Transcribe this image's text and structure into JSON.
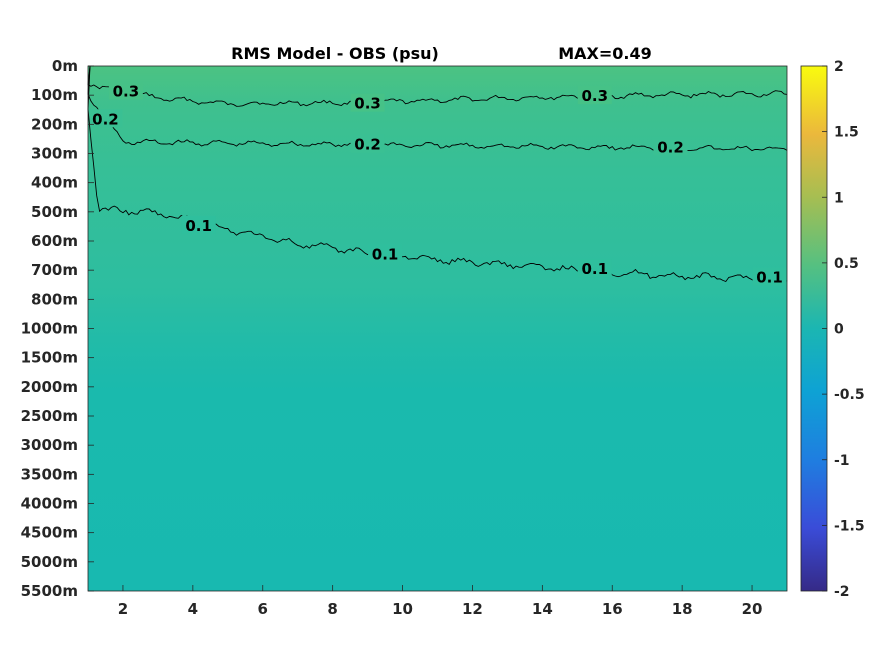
{
  "chart_data": {
    "type": "heatmap",
    "title": "RMS Model - OBS (psu)",
    "max_label": "MAX=0.49",
    "xlabel": "",
    "ylabel": "",
    "x_ticks": [
      "2",
      "4",
      "6",
      "8",
      "10",
      "12",
      "14",
      "16",
      "18",
      "20"
    ],
    "xlim": [
      1,
      21
    ],
    "y_ticks": [
      "0m",
      "100m",
      "200m",
      "300m",
      "400m",
      "500m",
      "600m",
      "700m",
      "800m",
      "1000m",
      "1500m",
      "2000m",
      "2500m",
      "3000m",
      "3500m",
      "4000m",
      "4500m",
      "5000m",
      "5500m"
    ],
    "colorbar": {
      "ticks": [
        "2",
        "1.5",
        "1",
        "0.5",
        "0",
        "-0.5",
        "-1",
        "-1.5",
        "-2"
      ],
      "range": [
        -2,
        2
      ],
      "colormap": "parula"
    },
    "contours": [
      {
        "level": 0.3,
        "label": "0.3",
        "depth_at_x": [
          [
            1,
            60
          ],
          [
            3,
            110
          ],
          [
            5,
            130
          ],
          [
            9,
            125
          ],
          [
            13,
            110
          ],
          [
            17,
            100
          ],
          [
            21,
            95
          ]
        ]
      },
      {
        "level": 0.2,
        "label": "0.2",
        "depth_at_x": [
          [
            1,
            100
          ],
          [
            2,
            260
          ],
          [
            5,
            265
          ],
          [
            9,
            270
          ],
          [
            13,
            275
          ],
          [
            17,
            280
          ],
          [
            21,
            285
          ]
        ]
      },
      {
        "level": 0.1,
        "label": "0.1",
        "depth_at_x": [
          [
            1,
            150
          ],
          [
            1.3,
            490
          ],
          [
            3,
            505
          ],
          [
            5,
            560
          ],
          [
            7,
            610
          ],
          [
            9,
            640
          ],
          [
            11,
            665
          ],
          [
            13,
            680
          ],
          [
            15,
            700
          ],
          [
            17,
            715
          ],
          [
            19,
            725
          ],
          [
            21,
            730
          ]
        ]
      }
    ],
    "field_values_by_depth": [
      {
        "depth": "0m",
        "value": 0.45
      },
      {
        "depth": "100m",
        "value": 0.33
      },
      {
        "depth": "300m",
        "value": 0.2
      },
      {
        "depth": "500m",
        "value": 0.13
      },
      {
        "depth": "800m",
        "value": 0.08
      },
      {
        "depth": "1500m",
        "value": 0.05
      },
      {
        "depth": "5500m",
        "value": 0.04
      }
    ]
  },
  "colors": {
    "top": "#4cc382",
    "upper": "#3dbf91",
    "mid": "#2dbea0",
    "deep": "#1abaad",
    "abyss": "#18b9b0"
  }
}
